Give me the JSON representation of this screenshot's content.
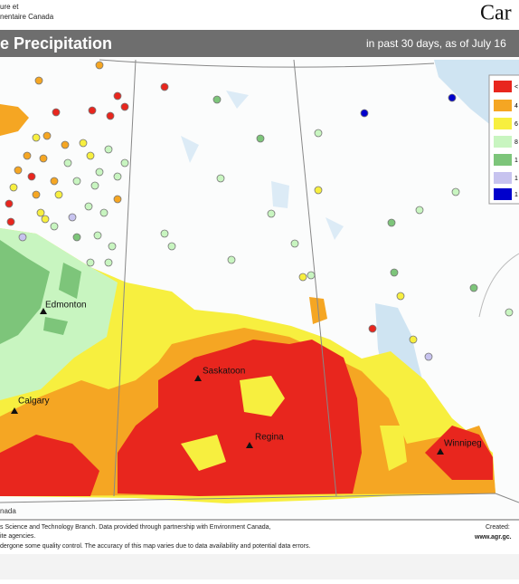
{
  "header": {
    "department_line1": "ure et",
    "department_line2": "nentaire Canada",
    "wordmark": "Car"
  },
  "title_bar": {
    "title": "e Precipitation",
    "subtitle": "in past 30 days, as of July 16"
  },
  "map": {
    "cities": [
      {
        "name": "Edmonton"
      },
      {
        "name": "Saskatoon"
      },
      {
        "name": "Calgary"
      },
      {
        "name": "Regina"
      },
      {
        "name": "Winnipeg"
      }
    ],
    "corner_label": "nada",
    "legend": [
      "<",
      "4",
      "6",
      "8",
      "1",
      "1",
      "1"
    ]
  },
  "footer": {
    "line1": "s Science and Technology Branch. Data provided through partnership with Environment Canada,",
    "line2": "ite agencies.",
    "line3": "dergone some quality control. The accuracy of this map varies due to data availability and potential data errors.",
    "created": "Created:",
    "url": "www.agr.gc."
  }
}
